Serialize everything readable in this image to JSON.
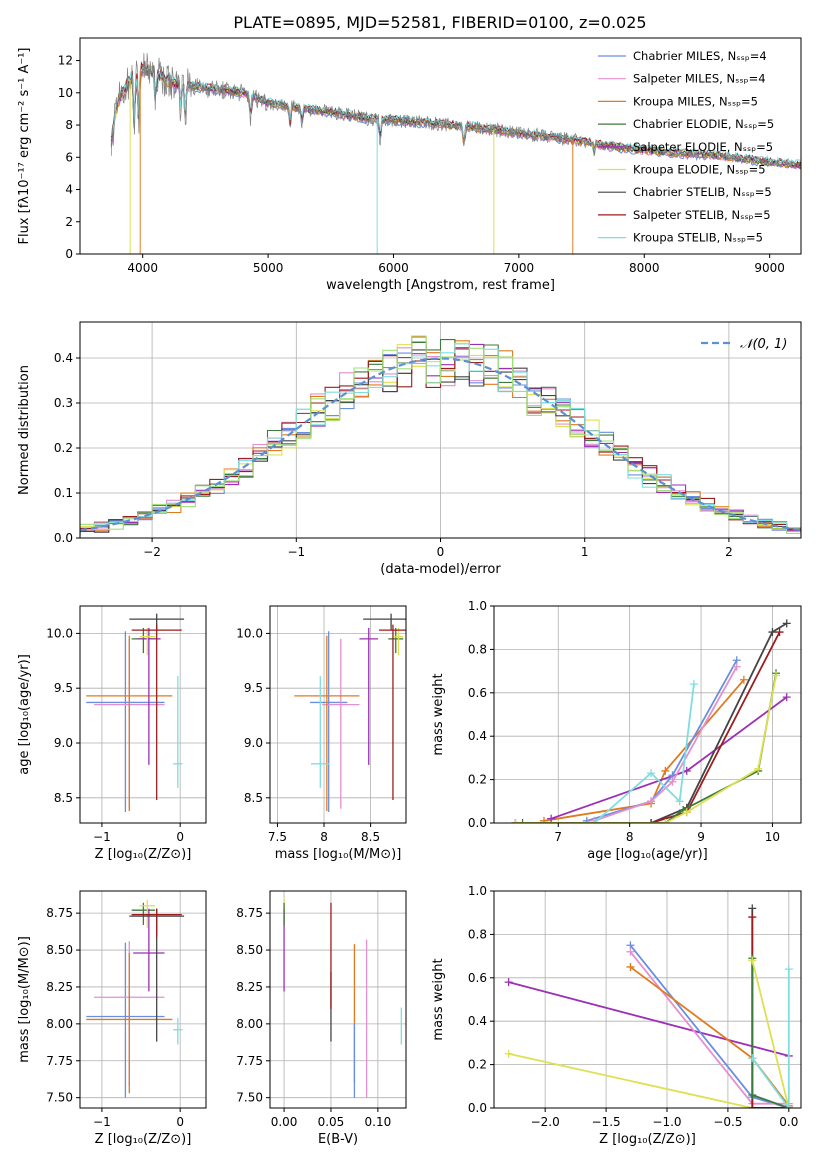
{
  "title": "PLATE=0895, MJD=52581, FIBERID=0100, z=0.025",
  "colors": {
    "Chabrier MILES": "#6a8fe0",
    "Salpeter MILES": "#e48fcf",
    "Kroupa MILES": "#e07a1f",
    "Chabrier ELODIE": "#3d7a3d",
    "Salpeter ELODIE": "#9c2fb5",
    "Kroupa ELODIE": "#dde050",
    "Chabrier STELIB": "#444444",
    "Salpeter STELIB": "#9c1d1d",
    "Kroupa STELIB": "#7fdde0",
    "lightgreen": "#9fe07a",
    "normal_curve": "#5b8fd6",
    "data": "#808080",
    "grid": "#b0b0b0"
  },
  "chart_data": [
    {
      "id": "spectrum",
      "type": "line",
      "xlabel": "wavelength [Angstrom, rest frame]",
      "ylabel": "Flux [fλ10⁻¹⁷ erg cm⁻² s⁻¹ A⁻¹]",
      "xlim": [
        3500,
        9250
      ],
      "ylim": [
        0,
        13.4
      ],
      "xticks": [
        4000,
        5000,
        6000,
        7000,
        8000,
        9000
      ],
      "yticks": [
        0,
        2,
        4,
        6,
        8,
        10,
        12
      ],
      "grid": false,
      "legend_position": "top-right",
      "legend": [
        "Chabrier MILES, Nₛₛₚ=4",
        "Salpeter MILES, Nₛₛₚ=4",
        "Kroupa MILES, Nₛₛₚ=5",
        "Chabrier ELODIE, Nₛₛₚ=5",
        "Salpeter ELODIE, Nₛₛₚ=5",
        "Kroupa ELODIE, Nₛₛₚ=5",
        "Chabrier STELIB, Nₛₛₚ=5",
        "Salpeter STELIB, Nₛₛₚ=5",
        "Kroupa STELIB, Nₛₛₚ=5"
      ],
      "legend_series": [
        "Chabrier MILES",
        "Salpeter MILES",
        "Kroupa MILES",
        "Chabrier ELODIE",
        "Salpeter ELODIE",
        "Kroupa ELODIE",
        "Chabrier STELIB",
        "Salpeter STELIB",
        "Kroupa STELIB"
      ],
      "continuum": {
        "x": [
          3750,
          3800,
          3900,
          4000,
          4100,
          4200,
          4400,
          4600,
          4800,
          5000,
          5200,
          5500,
          5800,
          6000,
          6300,
          6600,
          7000,
          7400,
          7800,
          8200,
          8600,
          9000,
          9250
        ],
        "y": [
          7.0,
          9.5,
          10.8,
          11.5,
          11.3,
          10.7,
          10.4,
          10.2,
          10.0,
          9.4,
          9.1,
          8.8,
          8.4,
          8.3,
          8.1,
          7.9,
          7.5,
          7.1,
          6.6,
          6.3,
          6.1,
          5.7,
          5.5
        ]
      },
      "dropouts": [
        {
          "series": "Kroupa ELODIE",
          "x": 3900
        },
        {
          "series": "Kroupa MILES",
          "x": 3980
        },
        {
          "series": "Kroupa STELIB",
          "x": 5870
        },
        {
          "series": "Kroupa ELODIE",
          "x": 6800
        },
        {
          "series": "Kroupa MILES",
          "x": 7430
        }
      ]
    },
    {
      "id": "residuals",
      "type": "step",
      "xlabel": "(data-model)/error",
      "ylabel": "Normed distribution",
      "xlim": [
        -2.5,
        2.5
      ],
      "ylim": [
        0,
        0.48
      ],
      "xticks": [
        -2,
        -1,
        0,
        1,
        2
      ],
      "xtick_labels": [
        "−2",
        "−1",
        "0",
        "1",
        "2"
      ],
      "yticks": [
        0.0,
        0.1,
        0.2,
        0.3,
        0.4
      ],
      "grid": true,
      "legend": [
        {
          "label": "𝒩(0, 1)",
          "style": "dashed"
        }
      ],
      "legend_position": "top-right",
      "bin_width": 0.1,
      "series_colors": [
        "#6a8fe0",
        "#e48fcf",
        "#e07a1f",
        "#3d7a3d",
        "#9c2fb5",
        "#dde050",
        "#444444",
        "#9c1d1d",
        "#7fdde0",
        "#9fe07a"
      ]
    },
    {
      "id": "age-vs-Z",
      "type": "errorbar",
      "xlabel": "Z [log₁₀(Z/Z⊙)]",
      "ylabel": "age  [log₁₀(age/yr)]",
      "xlim": [
        -1.28,
        0.33
      ],
      "ylim": [
        8.27,
        10.25
      ],
      "xticks": [
        -1,
        0
      ],
      "xtick_labels": [
        "−1",
        "0"
      ],
      "yticks": [
        8.5,
        9.0,
        9.5,
        10.0
      ],
      "grid": true,
      "points": [
        {
          "series": "Chabrier MILES",
          "x": -0.7,
          "xerr": 0.5,
          "y": 9.37,
          "yerr": [
            1.0,
            0.65
          ]
        },
        {
          "series": "Salpeter MILES",
          "x": -0.65,
          "xerr": 0.45,
          "y": 9.35,
          "yerr": [
            0.95,
            0.6
          ]
        },
        {
          "series": "Kroupa MILES",
          "x": -0.65,
          "xerr": 0.55,
          "y": 9.43,
          "yerr": [
            1.05,
            0.55
          ]
        },
        {
          "series": "Chabrier ELODIE",
          "x": -0.47,
          "xerr": 0.15,
          "y": 9.95,
          "yerr": [
            0.13,
            0.1
          ]
        },
        {
          "series": "Salpeter ELODIE",
          "x": -0.4,
          "xerr": 0.15,
          "y": 9.95,
          "yerr": [
            1.15,
            0.1
          ]
        },
        {
          "series": "Kroupa ELODIE",
          "x": -0.42,
          "xerr": 0.1,
          "y": 9.97,
          "yerr": [
            0.17,
            0.08
          ]
        },
        {
          "series": "Chabrier STELIB",
          "x": -0.3,
          "xerr": 0.35,
          "y": 10.13,
          "yerr": [
            0.1,
            0.05
          ]
        },
        {
          "series": "Salpeter STELIB",
          "x": -0.3,
          "xerr": 0.32,
          "y": 10.03,
          "yerr": [
            1.55,
            0.05
          ]
        },
        {
          "series": "Kroupa STELIB",
          "x": -0.03,
          "xerr": 0.06,
          "y": 8.81,
          "yerr": [
            0.22,
            0.8
          ]
        }
      ]
    },
    {
      "id": "age-vs-mass",
      "type": "errorbar",
      "xlabel": "mass [log₁₀(M/M⊙)]",
      "xlim": [
        7.42,
        8.88
      ],
      "ylim": [
        8.27,
        10.25
      ],
      "xticks": [
        7.5,
        8.0,
        8.5
      ],
      "yticks": [
        8.5,
        9.0,
        9.5,
        10.0
      ],
      "grid": true,
      "points": [
        {
          "series": "Chabrier MILES",
          "x": 8.05,
          "xerr": 0.2,
          "y": 9.37,
          "yerr": [
            1.0,
            0.65
          ]
        },
        {
          "series": "Salpeter MILES",
          "x": 8.18,
          "xerr": 0.2,
          "y": 9.35,
          "yerr": [
            0.95,
            0.6
          ]
        },
        {
          "series": "Kroupa MILES",
          "x": 8.03,
          "xerr": 0.35,
          "y": 9.43,
          "yerr": [
            1.05,
            0.55
          ]
        },
        {
          "series": "Chabrier ELODIE",
          "x": 8.77,
          "xerr": 0.08,
          "y": 9.95,
          "yerr": [
            0.13,
            0.1
          ]
        },
        {
          "series": "Salpeter ELODIE",
          "x": 8.48,
          "xerr": 0.1,
          "y": 9.95,
          "yerr": [
            1.15,
            0.1
          ]
        },
        {
          "series": "Kroupa ELODIE",
          "x": 8.8,
          "xerr": 0.05,
          "y": 9.97,
          "yerr": [
            0.17,
            0.08
          ]
        },
        {
          "series": "Chabrier STELIB",
          "x": 8.72,
          "xerr": 0.3,
          "y": 10.13,
          "yerr": [
            0.1,
            0.05
          ]
        },
        {
          "series": "Salpeter STELIB",
          "x": 8.74,
          "xerr": 0.15,
          "y": 10.03,
          "yerr": [
            1.55,
            0.05
          ]
        },
        {
          "series": "Kroupa STELIB",
          "x": 7.96,
          "xerr": 0.1,
          "y": 8.81,
          "yerr": [
            0.22,
            0.8
          ]
        }
      ]
    },
    {
      "id": "weight-vs-age",
      "type": "line",
      "xlabel": "age  [log₁₀(age/yr)]",
      "ylabel": "mass weight",
      "xlim": [
        6.1,
        10.4
      ],
      "ylim": [
        0,
        1.0
      ],
      "xticks": [
        7,
        8,
        9,
        10
      ],
      "yticks": [
        0.0,
        0.2,
        0.4,
        0.6,
        0.8,
        1.0
      ],
      "grid": true,
      "series": [
        {
          "name": "Kroupa MILES",
          "x": [
            6.8,
            8.3,
            8.5,
            9.6
          ],
          "y": [
            0.01,
            0.09,
            0.24,
            0.66
          ]
        },
        {
          "name": "Salpeter ELODIE",
          "x": [
            6.9,
            8.8,
            10.2
          ],
          "y": [
            0.02,
            0.24,
            0.58
          ]
        },
        {
          "name": "Chabrier MILES",
          "x": [
            7.4,
            8.3,
            8.6,
            9.5
          ],
          "y": [
            0.01,
            0.1,
            0.22,
            0.75
          ]
        },
        {
          "name": "Salpeter MILES",
          "x": [
            7.5,
            8.3,
            8.6,
            9.5
          ],
          "y": [
            0.01,
            0.1,
            0.19,
            0.72
          ]
        },
        {
          "name": "Kroupa STELIB",
          "x": [
            7.5,
            8.3,
            8.7,
            8.9
          ],
          "y": [
            0.0,
            0.23,
            0.1,
            0.64
          ]
        },
        {
          "name": "Chabrier STELIB",
          "x": [
            6.4,
            8.3,
            8.8,
            10.0,
            10.2
          ],
          "y": [
            0.0,
            0.0,
            0.07,
            0.88,
            0.92
          ]
        },
        {
          "name": "Salpeter STELIB",
          "x": [
            6.4,
            8.3,
            8.8,
            10.1
          ],
          "y": [
            0.0,
            0.0,
            0.05,
            0.88
          ]
        },
        {
          "name": "Chabrier ELODIE",
          "x": [
            6.5,
            8.5,
            8.75,
            9.8,
            10.05
          ],
          "y": [
            0.0,
            0.0,
            0.06,
            0.24,
            0.69
          ]
        },
        {
          "name": "Kroupa ELODIE",
          "x": [
            6.4,
            8.5,
            8.8,
            9.8,
            10.05
          ],
          "y": [
            0.0,
            0.0,
            0.05,
            0.25,
            0.68
          ]
        }
      ]
    },
    {
      "id": "mass-vs-Z",
      "type": "errorbar",
      "xlabel": "Z [log₁₀(Z/Z⊙)]",
      "ylabel": "mass [log₁₀(M/M⊙)]",
      "xlim": [
        -1.28,
        0.33
      ],
      "ylim": [
        7.43,
        8.9
      ],
      "xticks": [
        -1,
        0
      ],
      "xtick_labels": [
        "−1",
        "0"
      ],
      "yticks": [
        7.5,
        7.75,
        8.0,
        8.25,
        8.5,
        8.75
      ],
      "grid": true,
      "points": [
        {
          "series": "Chabrier MILES",
          "x": -0.7,
          "xerr": 0.5,
          "y": 8.05,
          "yerr": [
            0.55,
            0.5
          ]
        },
        {
          "series": "Salpeter MILES",
          "x": -0.65,
          "xerr": 0.45,
          "y": 8.18,
          "yerr": [
            0.6,
            0.38
          ]
        },
        {
          "series": "Kroupa MILES",
          "x": -0.65,
          "xerr": 0.55,
          "y": 8.03,
          "yerr": [
            0.5,
            0.45
          ]
        },
        {
          "series": "Chabrier ELODIE",
          "x": -0.47,
          "xerr": 0.15,
          "y": 8.77,
          "yerr": [
            0.1,
            0.05
          ]
        },
        {
          "series": "Salpeter ELODIE",
          "x": -0.4,
          "xerr": 0.2,
          "y": 8.48,
          "yerr": [
            0.26,
            0.3
          ]
        },
        {
          "series": "Kroupa ELODIE",
          "x": -0.42,
          "xerr": 0.1,
          "y": 8.8,
          "yerr": [
            0.15,
            0.04
          ]
        },
        {
          "series": "Chabrier STELIB",
          "x": -0.3,
          "xerr": 0.35,
          "y": 8.73,
          "yerr": [
            0.85,
            0.05
          ]
        },
        {
          "series": "Salpeter STELIB",
          "x": -0.3,
          "xerr": 0.32,
          "y": 8.74,
          "yerr": [
            0.15,
            0.04
          ]
        },
        {
          "series": "Kroupa STELIB",
          "x": -0.03,
          "xerr": 0.06,
          "y": 7.96,
          "yerr": [
            0.1,
            0.08
          ]
        }
      ]
    },
    {
      "id": "mass-vs-EBV",
      "type": "errorbar",
      "xlabel": "E(B-V)",
      "xlim": [
        -0.015,
        0.13
      ],
      "ylim": [
        7.43,
        8.9
      ],
      "xticks": [
        0.0,
        0.05,
        0.1
      ],
      "xtick_labels": [
        "0.00",
        "0.05",
        "0.10"
      ],
      "yticks": [
        7.5,
        7.75,
        8.0,
        8.25,
        8.5,
        8.75
      ],
      "grid": true,
      "points": [
        {
          "series": "Kroupa ELODIE",
          "x": 0.0,
          "y": 8.8,
          "yerr": [
            0.15,
            0.05
          ]
        },
        {
          "series": "Salpeter ELODIE",
          "x": 0.0,
          "y": 8.48,
          "yerr": [
            0.26,
            0.3
          ]
        },
        {
          "series": "Chabrier ELODIE",
          "x": 0.0,
          "y": 8.77,
          "yerr": [
            0.1,
            0.05
          ]
        },
        {
          "series": "Chabrier STELIB",
          "x": 0.05,
          "y": 8.35,
          "yerr": [
            0.47,
            0.0
          ]
        },
        {
          "series": "Salpeter STELIB",
          "x": 0.05,
          "y": 8.3,
          "yerr": [
            0.2,
            0.52
          ]
        },
        {
          "series": "Kroupa MILES",
          "x": 0.075,
          "y": 8.05,
          "yerr": [
            0.45,
            0.49
          ]
        },
        {
          "series": "Chabrier MILES",
          "x": 0.075,
          "y": 7.8,
          "yerr": [
            0.3,
            0.2
          ]
        },
        {
          "series": "Salpeter MILES",
          "x": 0.088,
          "y": 8.1,
          "yerr": [
            0.6,
            0.47
          ]
        },
        {
          "series": "Kroupa STELIB",
          "x": 0.125,
          "y": 7.98,
          "yerr": [
            0.12,
            0.13
          ]
        }
      ]
    },
    {
      "id": "weight-vs-Z",
      "type": "line",
      "xlabel": "Z [log₁₀(Z/Z⊙)]",
      "ylabel": "mass weight",
      "xlim": [
        -2.42,
        0.1
      ],
      "ylim": [
        0,
        1.0
      ],
      "xticks": [
        -2.0,
        -1.5,
        -1.0,
        -0.5,
        0.0
      ],
      "xtick_labels": [
        "−2.0",
        "−1.5",
        "−1.0",
        "−0.5",
        "0.0"
      ],
      "yticks": [
        0.0,
        0.2,
        0.4,
        0.6,
        0.8,
        1.0
      ],
      "grid": true,
      "series": [
        {
          "name": "Salpeter ELODIE",
          "x": [
            -2.3,
            0.0
          ],
          "y": [
            0.58,
            0.24
          ]
        },
        {
          "name": "Kroupa ELODIE",
          "x": [
            -2.3,
            -0.3,
            0.0
          ],
          "y": [
            0.25,
            0.0,
            0.0
          ]
        },
        {
          "name": "Chabrier MILES",
          "x": [
            -1.3,
            -0.3,
            0.0
          ],
          "y": [
            0.75,
            0.05,
            0.0
          ]
        },
        {
          "name": "Salpeter MILES",
          "x": [
            -1.3,
            -0.3,
            0.0
          ],
          "y": [
            0.72,
            0.02,
            0.02
          ]
        },
        {
          "name": "Kroupa MILES",
          "x": [
            -1.3,
            -0.3,
            0.0
          ],
          "y": [
            0.65,
            0.23,
            0.01
          ]
        },
        {
          "name": "Chabrier STELIB",
          "x": [
            -0.3,
            -0.3,
            0.0
          ],
          "y": [
            0.92,
            0.0,
            0.0
          ]
        },
        {
          "name": "Salpeter STELIB",
          "x": [
            -0.3,
            -0.3,
            0.0
          ],
          "y": [
            0.88,
            0.0,
            0.0
          ]
        },
        {
          "name": "Chabrier ELODIE",
          "x": [
            -0.3,
            -0.3,
            0.0
          ],
          "y": [
            0.69,
            0.06,
            0.0
          ]
        },
        {
          "name": "Kroupa ELODIE",
          "x": [
            -0.3,
            0.0
          ],
          "y": [
            0.68,
            0.0
          ]
        },
        {
          "name": "Kroupa STELIB",
          "x": [
            -0.3,
            0.0,
            0.0
          ],
          "y": [
            0.23,
            0.0,
            0.64
          ]
        }
      ]
    }
  ]
}
